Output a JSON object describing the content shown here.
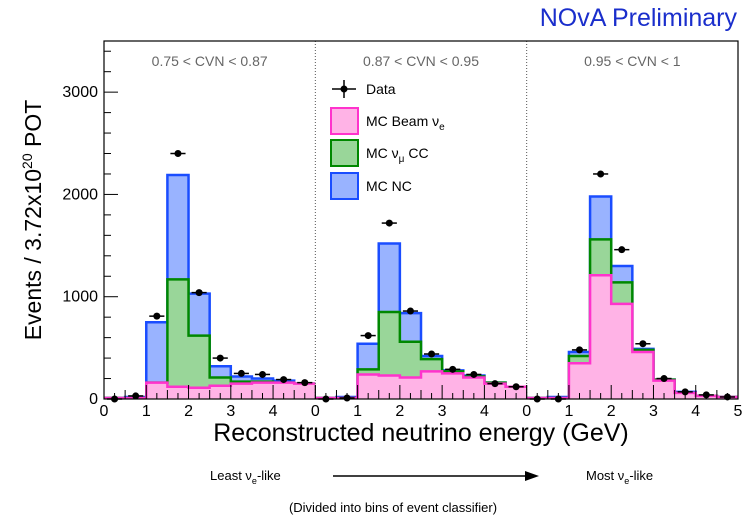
{
  "chart_data": {
    "type": "bar",
    "title": "NOvA Preliminary",
    "xlabel": "Reconstructed neutrino energy (GeV)",
    "ylabel_prefix": "Events / 3.72x10",
    "ylabel_exp": "20",
    "ylabel_suffix": " POT",
    "ylim": [
      0,
      3500
    ],
    "yticks": [
      "0",
      "1000",
      "2000",
      "3000"
    ],
    "ytick_values": [
      0,
      1000,
      2000,
      3000
    ],
    "panel_xlim": [
      0,
      5
    ],
    "panel_xticks": [
      "0",
      "1",
      "2",
      "3",
      "4",
      "0",
      "1",
      "2",
      "3",
      "4",
      "0",
      "1",
      "2",
      "3",
      "4",
      "5"
    ],
    "bin_edges": [
      0,
      0.5,
      1,
      1.5,
      2,
      2.5,
      3,
      3.5,
      4,
      4.5,
      5
    ],
    "panels": [
      {
        "label": "0.75 < CVN < 0.87",
        "beam_nue": [
          10,
          10,
          160,
          120,
          110,
          130,
          150,
          160,
          160,
          150
        ],
        "numu_cc": [
          10,
          10,
          160,
          1170,
          620,
          210,
          170,
          170,
          160,
          150
        ],
        "nc": [
          10,
          20,
          750,
          2190,
          1030,
          320,
          220,
          200,
          180,
          150
        ],
        "data": [
          0,
          30,
          810,
          2400,
          1040,
          400,
          250,
          240,
          190,
          160
        ]
      },
      {
        "label": "0.87 < CVN < 0.95",
        "beam_nue": [
          10,
          10,
          240,
          230,
          210,
          270,
          250,
          210,
          150,
          120
        ],
        "numu_cc": [
          10,
          10,
          290,
          850,
          560,
          390,
          270,
          220,
          160,
          120
        ],
        "nc": [
          10,
          20,
          540,
          1520,
          840,
          420,
          280,
          230,
          160,
          120
        ],
        "data": [
          0,
          10,
          620,
          1720,
          860,
          440,
          290,
          240,
          150,
          120
        ]
      },
      {
        "label": "0.95 < CVN < 1",
        "beam_nue": [
          10,
          10,
          350,
          1210,
          930,
          460,
          180,
          60,
          30,
          20
        ],
        "numu_cc": [
          10,
          10,
          420,
          1560,
          1140,
          480,
          190,
          60,
          30,
          20
        ],
        "nc": [
          10,
          20,
          460,
          1980,
          1300,
          490,
          190,
          70,
          30,
          20
        ],
        "data": [
          0,
          0,
          480,
          2200,
          1460,
          540,
          200,
          70,
          40,
          20
        ]
      }
    ],
    "series": [
      {
        "name": "Data",
        "color": "#000000"
      },
      {
        "name": "MC Beam ν",
        "sub": "e",
        "fill": "#ffb3e6",
        "line": "#ff33cc"
      },
      {
        "name": "MC ν",
        "sub": "μ",
        "suffix": " CC",
        "fill": "#99d699",
        "line": "#008800"
      },
      {
        "name": "MC NC",
        "fill": "#99b3ff",
        "line": "#1a4dff"
      }
    ],
    "grid": false,
    "legend_position": "top-center"
  },
  "annotation": {
    "left_label": "Least ν",
    "left_sub": "e",
    "left_suffix": "-like",
    "right_label": "Most ν",
    "right_sub": "e",
    "right_suffix": "-like",
    "footnote": "(Divided into bins of event classifier)"
  }
}
